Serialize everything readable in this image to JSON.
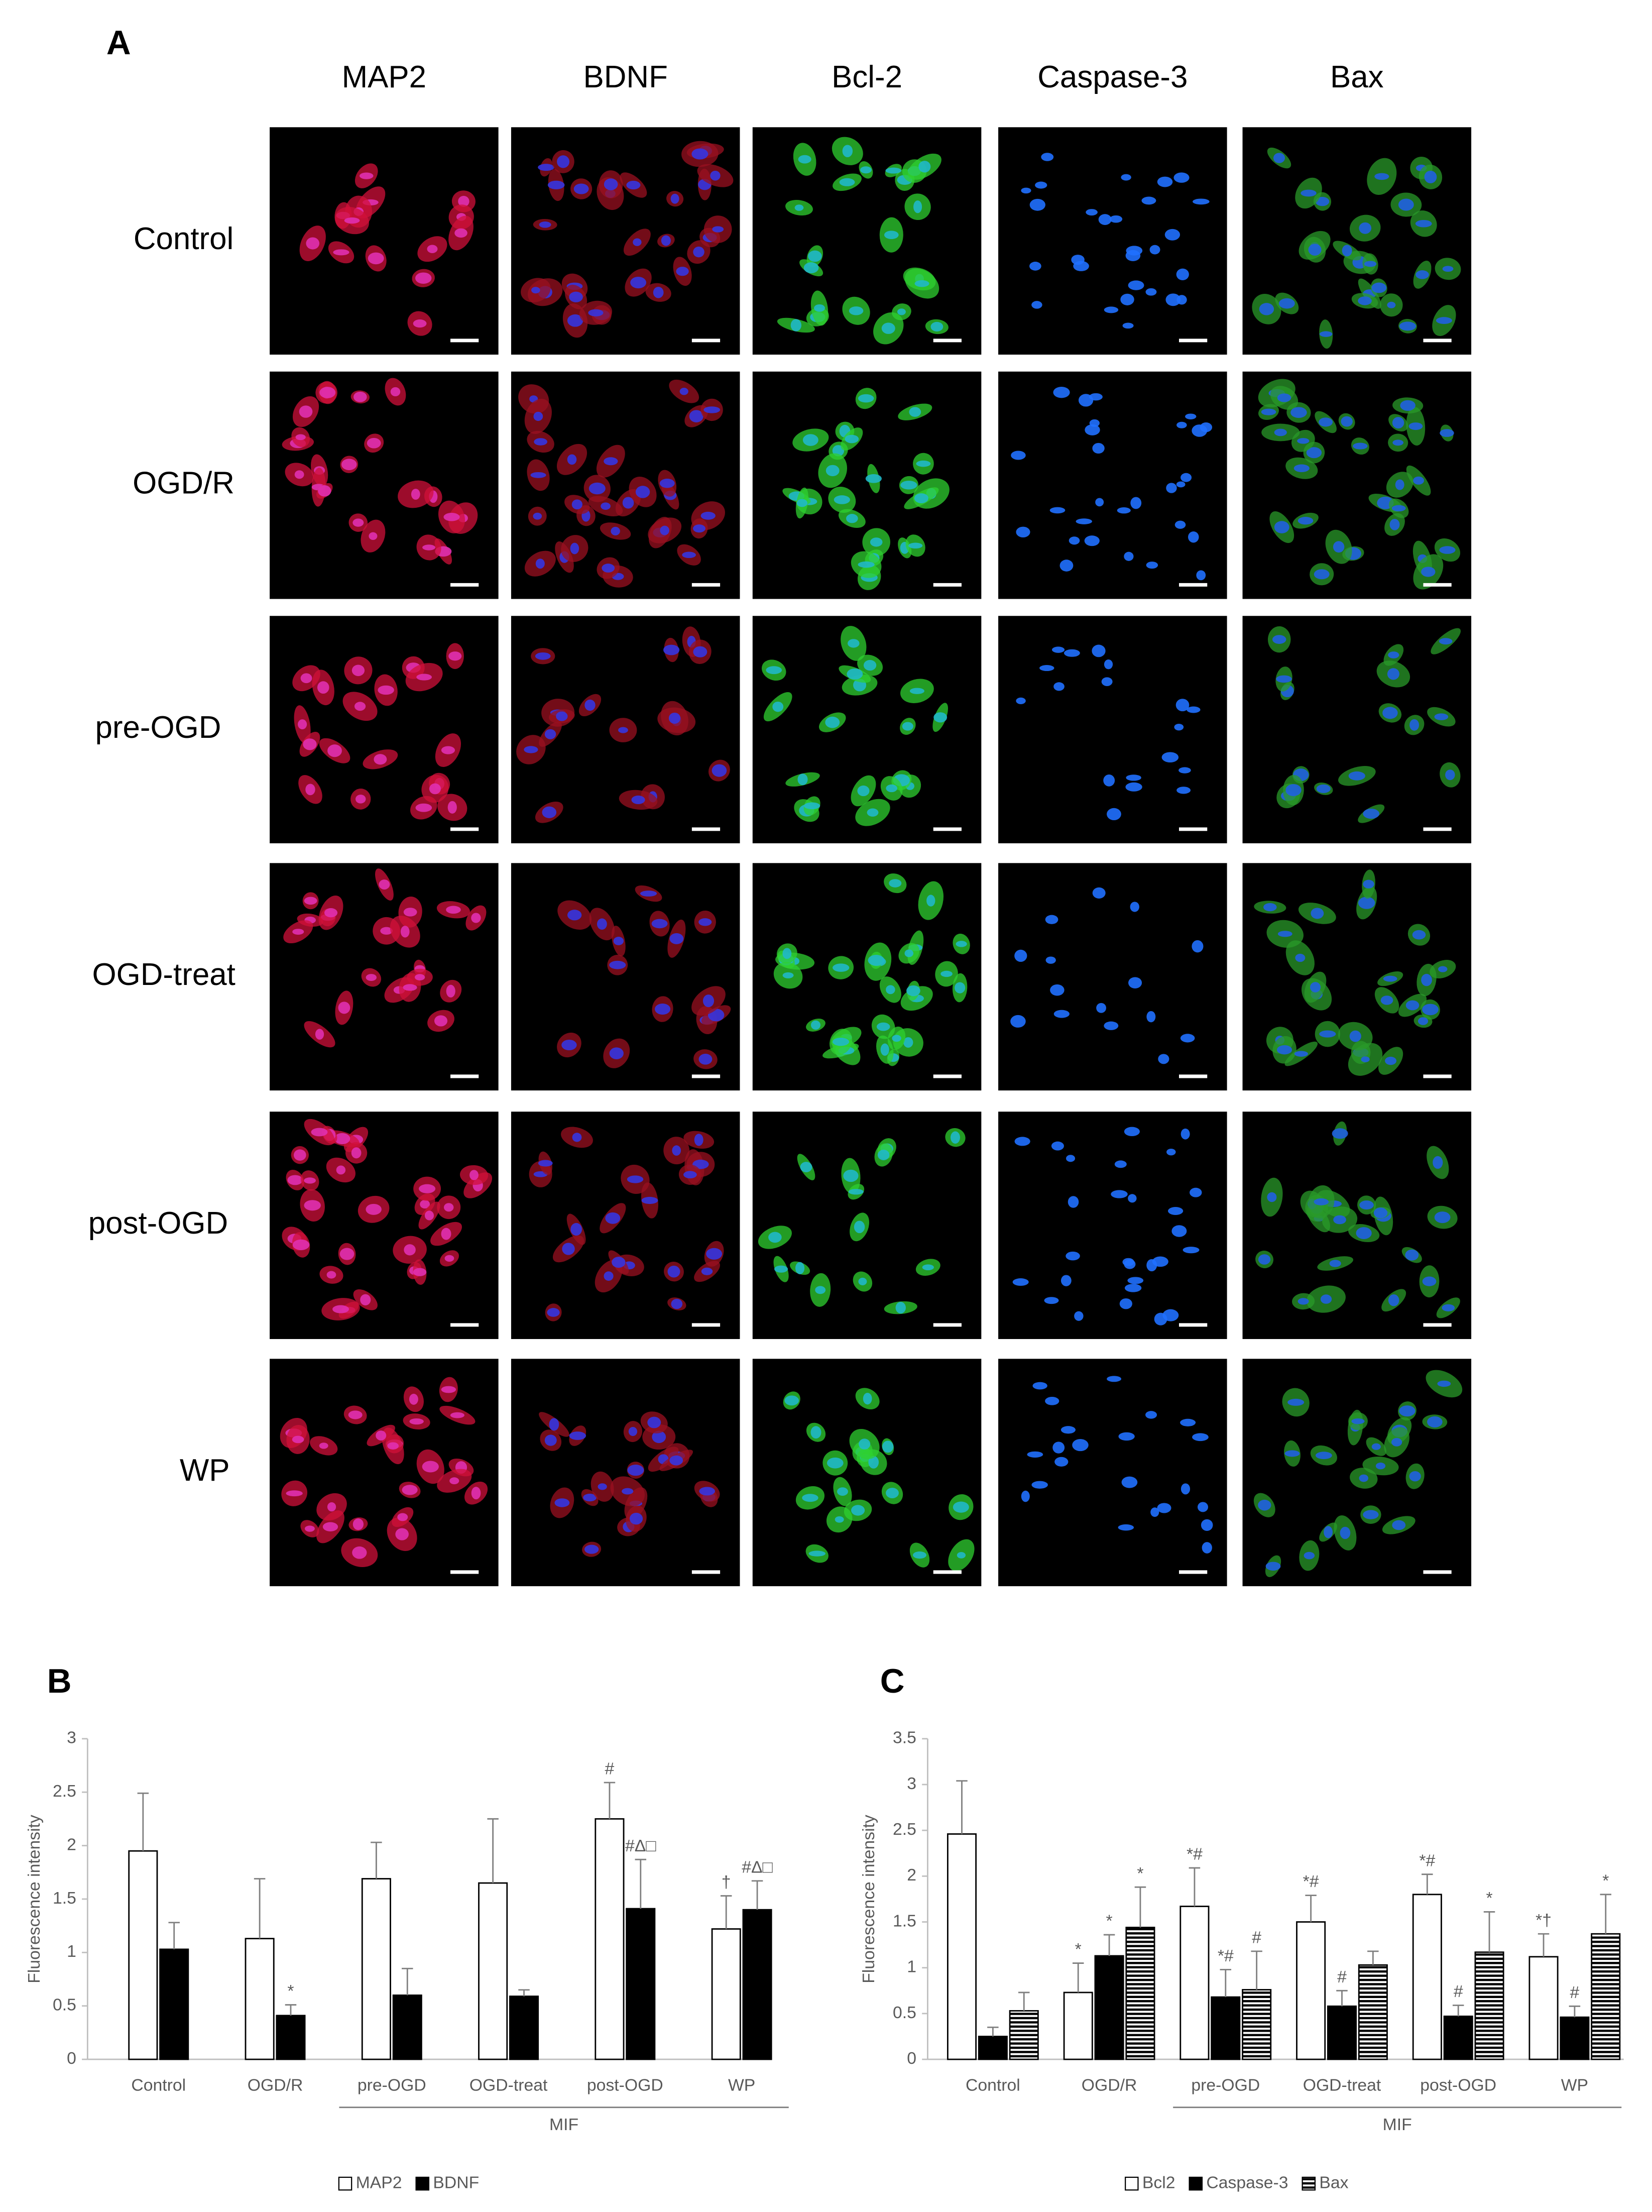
{
  "figure": {
    "panel_labels": [
      "A",
      "B",
      "C"
    ],
    "columns": [
      "MAP2",
      "BDNF",
      "Bcl-2",
      "Caspase-3",
      "Bax"
    ],
    "rows": [
      "Control",
      "OGD/R",
      "pre-OGD",
      "OGD-treat",
      "post-OGD",
      "WP"
    ]
  },
  "chart_data": [
    {
      "type": "bar",
      "y_label": "Fluorescence intensity",
      "categories": [
        "Control",
        "OGD/R",
        "pre-OGD",
        "OGD-treat",
        "post-OGD",
        "WP"
      ],
      "group_label": "MIF",
      "series": [
        {
          "name": "MAP2",
          "color": "#ffffff",
          "values": [
            1.95,
            1.13,
            1.69,
            1.65,
            2.25,
            1.22
          ],
          "errors": [
            0.54,
            0.56,
            0.34,
            0.6,
            0.34,
            0.31
          ],
          "annotations": [
            null,
            null,
            null,
            null,
            "#",
            "†"
          ]
        },
        {
          "name": "BDNF",
          "color": "#000000",
          "values": [
            1.03,
            0.41,
            0.6,
            0.59,
            1.41,
            1.4
          ],
          "errors": [
            0.25,
            0.1,
            0.25,
            0.06,
            0.46,
            0.27
          ],
          "annotations": [
            null,
            "*",
            null,
            null,
            "#Δ□",
            "#Δ□"
          ]
        }
      ],
      "ylim": [
        0,
        3
      ],
      "yticks": [
        0,
        0.5,
        1,
        1.5,
        2,
        2.5,
        3
      ],
      "legend": "bottom"
    },
    {
      "type": "bar",
      "y_label": "Fluorescence intensity",
      "categories": [
        "Control",
        "OGD/R",
        "pre-OGD",
        "OGD-treat",
        "post-OGD",
        "WP"
      ],
      "group_label": "MIF",
      "series": [
        {
          "name": "Bcl2",
          "color": "#ffffff",
          "values": [
            2.46,
            0.73,
            1.67,
            1.5,
            1.8,
            1.12
          ],
          "errors": [
            0.58,
            0.32,
            0.42,
            0.29,
            0.22,
            0.25
          ],
          "annotations": [
            null,
            "*",
            "*#",
            "*#",
            "*#",
            "*†"
          ]
        },
        {
          "name": "Caspase-3",
          "color": "#000000",
          "values": [
            0.25,
            1.13,
            0.68,
            0.58,
            0.47,
            0.46
          ],
          "errors": [
            0.1,
            0.23,
            0.3,
            0.17,
            0.12,
            0.12
          ],
          "annotations": [
            null,
            "*",
            "*#",
            "#",
            "#",
            "#"
          ]
        },
        {
          "name": "Bax",
          "color": "#000000",
          "hatch": "horizontal",
          "values": [
            0.53,
            1.44,
            0.76,
            1.03,
            1.17,
            1.37
          ],
          "errors": [
            0.2,
            0.44,
            0.42,
            0.15,
            0.44,
            0.43
          ],
          "annotations": [
            null,
            "*",
            "#",
            null,
            "*",
            "*"
          ]
        }
      ],
      "ylim": [
        0,
        3.5
      ],
      "yticks": [
        0,
        0.5,
        1,
        1.5,
        2,
        2.5,
        3,
        3.5
      ],
      "legend": "bottom"
    }
  ]
}
